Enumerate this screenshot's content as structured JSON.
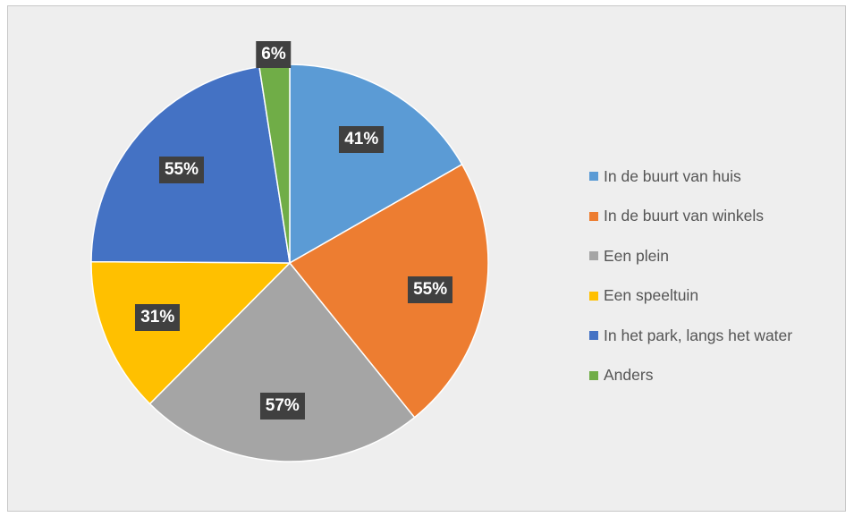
{
  "chart_data": {
    "type": "pie",
    "title": "",
    "slices": [
      {
        "name": "In de buurt van huis",
        "value": 41,
        "label": "41%",
        "color": "#5b9bd5"
      },
      {
        "name": "In de buurt van winkels",
        "value": 55,
        "label": "55%",
        "color": "#ed7d31"
      },
      {
        "name": "Een plein",
        "value": 57,
        "label": "57%",
        "color": "#a5a5a5"
      },
      {
        "name": "Een speeltuin",
        "value": 31,
        "label": "31%",
        "color": "#ffc000"
      },
      {
        "name": "In het park, langs het water",
        "value": 55,
        "label": "55%",
        "color": "#4472c4"
      },
      {
        "name": "Anders",
        "value": 6,
        "label": "6%",
        "color": "#70ad47"
      }
    ],
    "legend_position": "right",
    "start_angle": "top, clockwise"
  }
}
